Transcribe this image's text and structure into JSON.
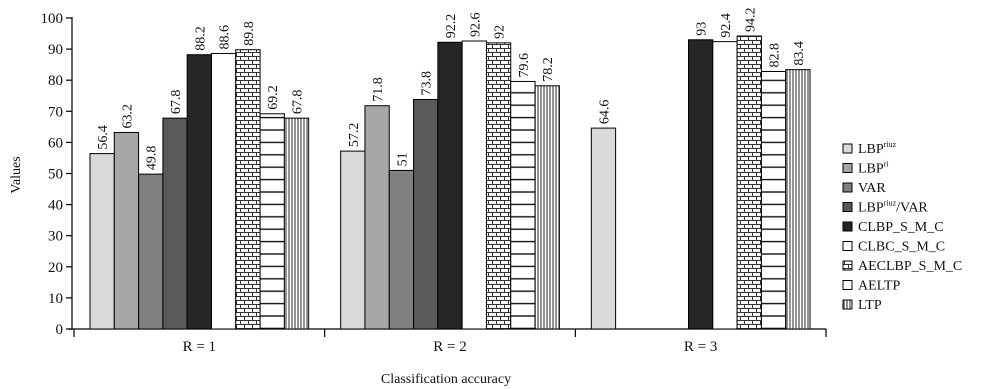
{
  "chart_data": {
    "type": "bar",
    "title": "",
    "xlabel": "Classification accuracy",
    "ylabel": "Values",
    "ylim": [
      0,
      100
    ],
    "yticks": [
      0,
      10,
      20,
      30,
      40,
      50,
      60,
      70,
      80,
      90,
      100
    ],
    "grid": false,
    "legend_position": "right",
    "categories": [
      "R = 1",
      "R = 2",
      "R = 3"
    ],
    "series": [
      {
        "name": "LBP",
        "superscript": "riuz",
        "pattern": "light",
        "values": [
          56.4,
          57.2,
          64.6
        ]
      },
      {
        "name": "LBP",
        "superscript": "ri",
        "pattern": "mid",
        "values": [
          63.2,
          71.8,
          null
        ]
      },
      {
        "name": "VAR",
        "superscript": "",
        "pattern": "gray",
        "values": [
          49.8,
          51,
          null
        ]
      },
      {
        "name": "LBP",
        "superscript": "riuz",
        "suffix": "/VAR",
        "pattern": "dark",
        "values": [
          67.8,
          73.8,
          null
        ]
      },
      {
        "name": "CLBP_S_M_C",
        "superscript": "",
        "pattern": "black",
        "values": [
          88.2,
          92.2,
          93
        ]
      },
      {
        "name": "CLBC_S_M_C",
        "superscript": "",
        "pattern": "white",
        "values": [
          88.6,
          92.6,
          92.4
        ]
      },
      {
        "name": "AECLBP_S_M_C",
        "superscript": "",
        "pattern": "brick",
        "values": [
          89.8,
          92,
          94.2
        ]
      },
      {
        "name": "AELTP",
        "superscript": "",
        "pattern": "hlines",
        "values": [
          69.2,
          79.6,
          82.8
        ]
      },
      {
        "name": "LTP",
        "superscript": "",
        "pattern": "vlines",
        "values": [
          67.8,
          78.2,
          83.4
        ]
      }
    ]
  }
}
